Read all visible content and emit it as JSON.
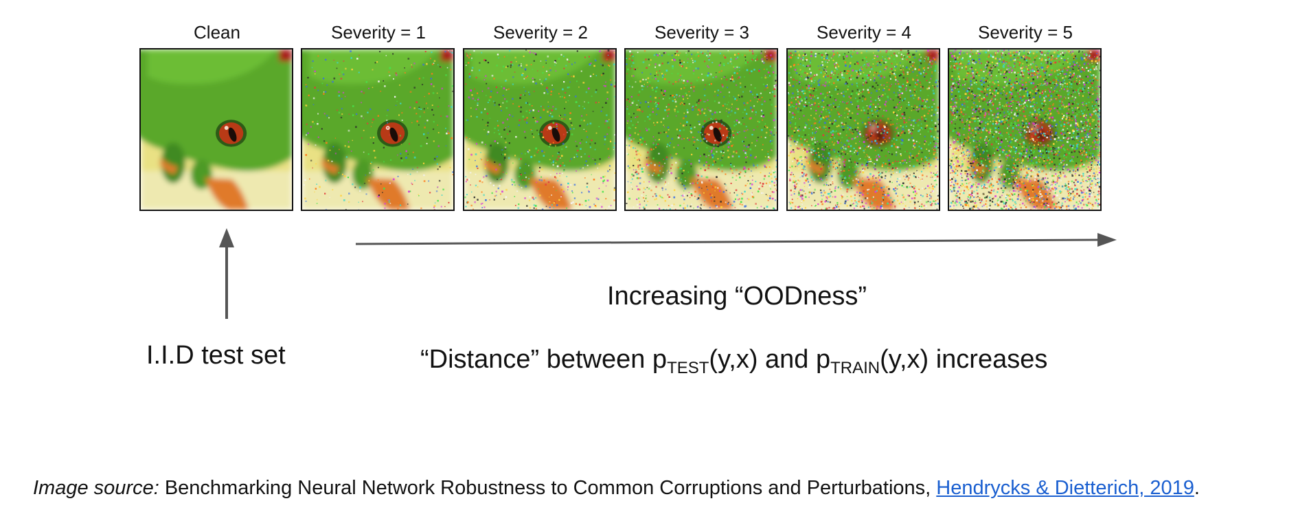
{
  "panels": [
    {
      "title": "Clean",
      "severity": 0
    },
    {
      "title": "Severity = 1",
      "severity": 1
    },
    {
      "title": "Severity = 2",
      "severity": 2
    },
    {
      "title": "Severity = 3",
      "severity": 3
    },
    {
      "title": "Severity = 4",
      "severity": 4
    },
    {
      "title": "Severity = 5",
      "severity": 5
    }
  ],
  "labels": {
    "iid": "I.I.D test set",
    "increasing": "Increasing “OODness”",
    "distance_prefix": "“Distance” between p",
    "distance_sub1": "TEST",
    "distance_mid": "(y,x) and p",
    "distance_sub2": "TRAIN",
    "distance_suffix": "(y,x) increases"
  },
  "source": {
    "label": "Image source:",
    "text": " Benchmarking Neural Network Robustness to Common Corruptions and Perturbations, ",
    "link": "Hendrycks & Dietterich, 2019",
    "end": "."
  },
  "colors": {
    "arrow": "#555555",
    "link": "#1a5fd0",
    "frog_green": "#5aa82c",
    "background_yellow": "#e9e184",
    "eye_red": "#b83a16",
    "toe_orange": "#e07a2a"
  }
}
